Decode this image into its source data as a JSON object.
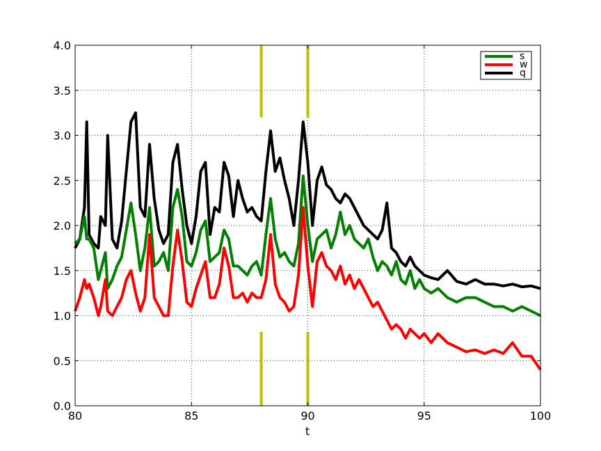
{
  "chart_data": {
    "type": "line",
    "title": "",
    "xlabel": "t",
    "ylabel": "",
    "xlim": [
      80,
      100
    ],
    "ylim": [
      0.0,
      4.0
    ],
    "xticks": [
      80,
      85,
      90,
      95,
      100
    ],
    "xtick_labels": [
      "80",
      "85",
      "90",
      "95",
      "100"
    ],
    "yticks": [
      0.0,
      0.5,
      1.0,
      1.5,
      2.0,
      2.5,
      3.0,
      3.5,
      4.0
    ],
    "ytick_labels": [
      "0.0",
      "0.5",
      "1.0",
      "1.5",
      "2.0",
      "2.5",
      "3.0",
      "3.5",
      "4.0"
    ],
    "grid": true,
    "legend_position": "top-right",
    "markers": {
      "color": "#bfbf00",
      "x": [
        88,
        90
      ],
      "upper_range": [
        3.2,
        4.0
      ],
      "lower_range": [
        0.0,
        0.82
      ]
    },
    "series": [
      {
        "name": "s",
        "color": "#007f00",
        "x": [
          80.0,
          80.2,
          80.4,
          80.5,
          80.6,
          80.8,
          81.0,
          81.1,
          81.3,
          81.4,
          81.6,
          81.8,
          82.0,
          82.2,
          82.4,
          82.6,
          82.8,
          83.0,
          83.2,
          83.4,
          83.6,
          83.8,
          84.0,
          84.2,
          84.4,
          84.6,
          84.8,
          85.0,
          85.2,
          85.4,
          85.6,
          85.8,
          86.0,
          86.2,
          86.4,
          86.6,
          86.8,
          87.0,
          87.2,
          87.4,
          87.6,
          87.8,
          88.0,
          88.2,
          88.4,
          88.6,
          88.8,
          89.0,
          89.2,
          89.4,
          89.6,
          89.8,
          90.0,
          90.2,
          90.4,
          90.6,
          90.8,
          91.0,
          91.2,
          91.4,
          91.6,
          91.8,
          92.0,
          92.2,
          92.4,
          92.6,
          92.8,
          93.0,
          93.2,
          93.4,
          93.6,
          93.8,
          94.0,
          94.2,
          94.4,
          94.6,
          94.8,
          95.0,
          95.3,
          95.6,
          96.0,
          96.4,
          96.8,
          97.2,
          97.6,
          98.0,
          98.4,
          98.8,
          99.2,
          99.6,
          100.0
        ],
        "values": [
          1.8,
          1.85,
          2.1,
          1.85,
          1.85,
          1.75,
          1.4,
          1.5,
          1.7,
          1.3,
          1.4,
          1.55,
          1.65,
          1.95,
          2.25,
          1.9,
          1.5,
          1.75,
          2.2,
          1.55,
          1.6,
          1.7,
          1.5,
          2.2,
          2.4,
          2.1,
          1.6,
          1.55,
          1.7,
          1.95,
          2.05,
          1.6,
          1.65,
          1.7,
          1.95,
          1.85,
          1.55,
          1.55,
          1.5,
          1.45,
          1.55,
          1.6,
          1.45,
          1.9,
          2.3,
          1.85,
          1.65,
          1.7,
          1.6,
          1.55,
          1.8,
          2.55,
          2.0,
          1.6,
          1.85,
          1.9,
          1.95,
          1.75,
          1.9,
          2.15,
          1.9,
          2.0,
          1.85,
          1.8,
          1.75,
          1.85,
          1.65,
          1.5,
          1.6,
          1.55,
          1.45,
          1.6,
          1.4,
          1.35,
          1.5,
          1.3,
          1.4,
          1.3,
          1.25,
          1.3,
          1.2,
          1.15,
          1.2,
          1.2,
          1.15,
          1.1,
          1.1,
          1.05,
          1.1,
          1.05,
          1.0
        ]
      },
      {
        "name": "w",
        "color": "#ff0000",
        "x": [
          80.0,
          80.2,
          80.4,
          80.5,
          80.6,
          80.8,
          81.0,
          81.1,
          81.3,
          81.4,
          81.6,
          81.8,
          82.0,
          82.2,
          82.4,
          82.6,
          82.8,
          83.0,
          83.2,
          83.4,
          83.6,
          83.8,
          84.0,
          84.2,
          84.4,
          84.6,
          84.8,
          85.0,
          85.2,
          85.4,
          85.6,
          85.8,
          86.0,
          86.2,
          86.4,
          86.6,
          86.8,
          87.0,
          87.2,
          87.4,
          87.6,
          87.8,
          88.0,
          88.2,
          88.4,
          88.6,
          88.8,
          89.0,
          89.2,
          89.4,
          89.6,
          89.8,
          90.0,
          90.2,
          90.4,
          90.6,
          90.8,
          91.0,
          91.2,
          91.4,
          91.6,
          91.8,
          92.0,
          92.2,
          92.4,
          92.6,
          92.8,
          93.0,
          93.2,
          93.4,
          93.6,
          93.8,
          94.0,
          94.2,
          94.4,
          94.6,
          94.8,
          95.0,
          95.3,
          95.6,
          96.0,
          96.4,
          96.8,
          97.2,
          97.6,
          98.0,
          98.4,
          98.8,
          99.2,
          99.6,
          100.0
        ],
        "values": [
          1.05,
          1.2,
          1.4,
          1.3,
          1.35,
          1.2,
          1.0,
          1.1,
          1.4,
          1.05,
          1.0,
          1.1,
          1.2,
          1.4,
          1.5,
          1.25,
          1.05,
          1.2,
          1.9,
          1.2,
          1.1,
          1.0,
          1.0,
          1.55,
          1.95,
          1.6,
          1.15,
          1.1,
          1.3,
          1.45,
          1.6,
          1.2,
          1.2,
          1.35,
          1.75,
          1.55,
          1.2,
          1.2,
          1.25,
          1.15,
          1.25,
          1.2,
          1.2,
          1.4,
          1.9,
          1.35,
          1.2,
          1.15,
          1.05,
          1.1,
          1.45,
          2.2,
          1.55,
          1.1,
          1.6,
          1.7,
          1.55,
          1.5,
          1.4,
          1.55,
          1.35,
          1.45,
          1.3,
          1.4,
          1.3,
          1.2,
          1.1,
          1.15,
          1.05,
          0.95,
          0.85,
          0.9,
          0.85,
          0.75,
          0.85,
          0.8,
          0.75,
          0.8,
          0.7,
          0.8,
          0.7,
          0.65,
          0.6,
          0.62,
          0.58,
          0.62,
          0.58,
          0.7,
          0.55,
          0.55,
          0.4
        ]
      },
      {
        "name": "q",
        "color": "#000000",
        "x": [
          80.0,
          80.2,
          80.4,
          80.5,
          80.6,
          80.8,
          81.0,
          81.1,
          81.3,
          81.4,
          81.6,
          81.8,
          82.0,
          82.2,
          82.4,
          82.6,
          82.8,
          83.0,
          83.2,
          83.4,
          83.6,
          83.8,
          84.0,
          84.2,
          84.4,
          84.6,
          84.8,
          85.0,
          85.2,
          85.4,
          85.6,
          85.8,
          86.0,
          86.2,
          86.4,
          86.6,
          86.8,
          87.0,
          87.2,
          87.4,
          87.6,
          87.8,
          88.0,
          88.2,
          88.4,
          88.6,
          88.8,
          89.0,
          89.2,
          89.4,
          89.6,
          89.8,
          90.0,
          90.2,
          90.4,
          90.6,
          90.8,
          91.0,
          91.2,
          91.4,
          91.6,
          91.8,
          92.0,
          92.2,
          92.4,
          92.6,
          92.8,
          93.0,
          93.2,
          93.4,
          93.6,
          93.8,
          94.0,
          94.2,
          94.4,
          94.6,
          94.8,
          95.0,
          95.3,
          95.6,
          96.0,
          96.4,
          96.8,
          97.2,
          97.6,
          98.0,
          98.4,
          98.8,
          99.2,
          99.6,
          100.0
        ],
        "values": [
          1.75,
          1.85,
          2.2,
          3.15,
          1.9,
          1.8,
          1.75,
          2.1,
          2.0,
          3.0,
          1.85,
          1.75,
          2.05,
          2.6,
          3.15,
          3.25,
          2.2,
          2.1,
          2.9,
          2.3,
          1.95,
          1.8,
          1.9,
          2.7,
          2.9,
          2.4,
          2.0,
          1.8,
          2.1,
          2.6,
          2.7,
          1.9,
          2.2,
          2.15,
          2.7,
          2.55,
          2.1,
          2.5,
          2.3,
          2.15,
          2.2,
          2.1,
          2.05,
          2.6,
          3.05,
          2.6,
          2.75,
          2.5,
          2.3,
          2.0,
          2.5,
          3.15,
          2.7,
          2.0,
          2.5,
          2.65,
          2.45,
          2.4,
          2.3,
          2.25,
          2.35,
          2.3,
          2.2,
          2.1,
          2.0,
          1.95,
          1.9,
          1.85,
          1.95,
          2.25,
          1.75,
          1.7,
          1.6,
          1.55,
          1.65,
          1.55,
          1.5,
          1.45,
          1.42,
          1.4,
          1.5,
          1.38,
          1.35,
          1.4,
          1.35,
          1.35,
          1.33,
          1.35,
          1.32,
          1.33,
          1.3
        ]
      }
    ]
  }
}
